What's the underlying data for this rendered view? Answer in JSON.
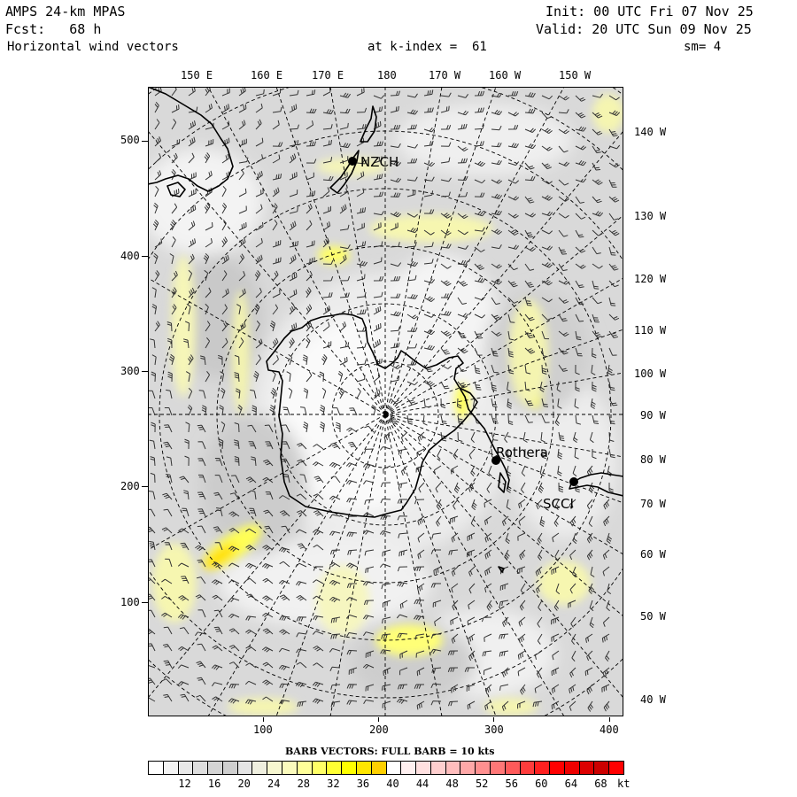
{
  "header": {
    "model": "AMPS 24-km MPAS",
    "init": "Init: 00 UTC Fri 07 Nov 25",
    "fcst": "Fcst:   68 h",
    "valid": "Valid: 20 UTC Sun 09 Nov 25",
    "field": "Horizontal wind vectors",
    "level": "at k-index =  61",
    "smoothing": "sm= 4"
  },
  "longitude_labels_top": [
    "150 E",
    "160 E",
    "170 E",
    "180",
    "170 W",
    "160 W",
    "150 W"
  ],
  "longitude_labels_right": [
    "140 W",
    "130 W",
    "120 W",
    "110 W",
    "100 W",
    "90 W",
    "80 W",
    "70 W",
    "60 W",
    "50 W",
    "40 W"
  ],
  "y_axis_ticks": [
    "500",
    "400",
    "300",
    "200",
    "100"
  ],
  "x_axis_ticks": [
    "100",
    "200",
    "300",
    "400"
  ],
  "stations": [
    {
      "label": "NZCH"
    },
    {
      "label": "Rothera"
    },
    {
      "label": "SCCI"
    }
  ],
  "barb_note": "BARB VECTORS:  FULL BARB = 10 kts",
  "colorbar": {
    "tick_labels": [
      "12",
      "16",
      "20",
      "24",
      "28",
      "32",
      "36",
      "40",
      "44",
      "48",
      "52",
      "56",
      "60",
      "64",
      "68"
    ],
    "unit": "kt",
    "colors": [
      "#ffffff",
      "#f4f4f4",
      "#e8e8e8",
      "#dedede",
      "#d4d4d4",
      "#cfcfcf",
      "#e4e4e4",
      "#efefdf",
      "#f7f7d0",
      "#fbfbbd",
      "#ffff99",
      "#ffff66",
      "#ffff33",
      "#ffff00",
      "#ffe600",
      "#ffd000",
      "#ffffff",
      "#fff0f0",
      "#ffe0e0",
      "#ffcfcf",
      "#ffbdbd",
      "#ffa8a8",
      "#ff9090",
      "#ff7777",
      "#ff5a5a",
      "#ff3c3c",
      "#ff2020",
      "#ff0000",
      "#ee0000",
      "#dd0000",
      "#cc0000",
      "#ff0000"
    ]
  }
}
